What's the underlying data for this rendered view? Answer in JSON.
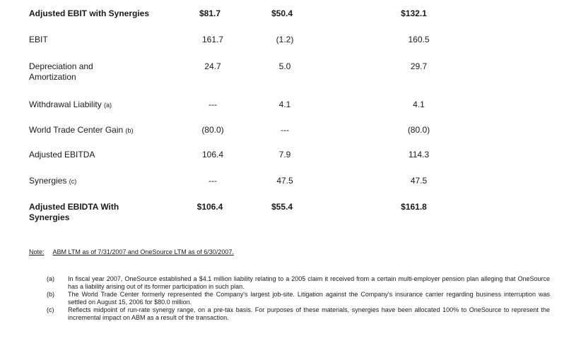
{
  "table": {
    "rows": [
      {
        "label": "Adjusted EBIT with Synergies",
        "ref": "",
        "c1": "$81.7",
        "c2": "$50.4",
        "c3": "$132.1",
        "bold": true
      },
      {
        "label": "EBIT",
        "ref": "",
        "c1": "161.7",
        "c2": "(1.2)",
        "c3": "160.5",
        "bold": false
      },
      {
        "label": "Depreciation and Amortization",
        "ref": "",
        "c1": "24.7",
        "c2": "5.0",
        "c3": "29.7",
        "bold": false
      },
      {
        "label": "Withdrawal Liability",
        "ref": "(a)",
        "c1": "---",
        "c2": "4.1",
        "c3": "4.1",
        "bold": false
      },
      {
        "label": "World Trade Center Gain",
        "ref": "(b)",
        "c1": "(80.0)",
        "c2": "---",
        "c3": "(80.0)",
        "bold": false
      },
      {
        "label": "Adjusted EBITDA",
        "ref": "",
        "c1": "106.4",
        "c2": "7.9",
        "c3": "114.3",
        "bold": false
      },
      {
        "label": "Synergies",
        "ref": "(c)",
        "c1": "---",
        "c2": "47.5",
        "c3": "47.5",
        "bold": false
      },
      {
        "label": "Adjusted EBIDTA With Synergies",
        "ref": "",
        "c1": "$106.4",
        "c2": "$55.4",
        "c3": "$161.8",
        "bold": true
      }
    ]
  },
  "note": {
    "prefix": "Note:",
    "text": "ABM LTM as of 7/31/2007 and OneSource LTM as of 6/30/2007."
  },
  "footnotes": [
    {
      "marker": "(a)",
      "text": "In fiscal year 2007, OneSource established a $4.1 million liability relating to a 2005 claim it received from a certain multi-employer pension plan alleging that OneSource has a liability arising out of its former participation in such plan."
    },
    {
      "marker": "(b)",
      "text": "The World Trade Center formerly represented the Company's largest job-site. Litigation against the Company's insurance carrier regarding business interruption was settled on August 15, 2006 for $80.0 million."
    },
    {
      "marker": "(c)",
      "text": "Reflects midpoint of run-rate synergy range, on a pre-tax basis. For purposes of these materials, synergies have been allocated 100% to OneSource to represent the incremental impact on ABM as a result of the transaction."
    }
  ]
}
